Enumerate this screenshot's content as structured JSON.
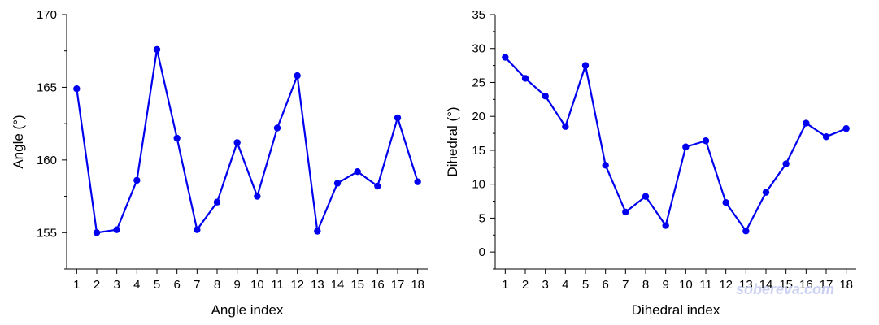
{
  "colors": {
    "series": "#0000ee",
    "axis": "#000000",
    "watermark": "#c7cdf2"
  },
  "watermark": "sobereva.com",
  "chart_data": [
    {
      "type": "line",
      "xlabel": "Angle index",
      "ylabel": "Angle (°)",
      "x": [
        1,
        2,
        3,
        4,
        5,
        6,
        7,
        8,
        9,
        10,
        11,
        12,
        13,
        14,
        15,
        16,
        17,
        18
      ],
      "series": [
        {
          "values": [
            164.9,
            155.0,
            155.2,
            158.6,
            167.6,
            161.5,
            155.2,
            157.1,
            161.2,
            157.5,
            162.2,
            165.8,
            155.1,
            158.4,
            159.2,
            158.2,
            162.9,
            158.5
          ]
        }
      ],
      "xlim": [
        0.5,
        18.5
      ],
      "ylim": [
        152.5,
        170
      ],
      "yticks": [
        155,
        160,
        165,
        170
      ],
      "grid": false
    },
    {
      "type": "line",
      "xlabel": "Dihedral index",
      "ylabel": "Dihedral (°)",
      "x": [
        1,
        2,
        3,
        4,
        5,
        6,
        7,
        8,
        9,
        10,
        11,
        12,
        13,
        14,
        15,
        16,
        17,
        18
      ],
      "series": [
        {
          "values": [
            28.7,
            25.6,
            23.0,
            18.5,
            27.5,
            12.8,
            5.9,
            8.2,
            3.9,
            15.5,
            16.4,
            7.3,
            3.1,
            8.8,
            13.0,
            19.0,
            17.0,
            18.2
          ]
        }
      ],
      "xlim": [
        0.5,
        18.5
      ],
      "ylim": [
        -2.5,
        35
      ],
      "yticks": [
        0,
        5,
        10,
        15,
        20,
        25,
        30,
        35
      ],
      "grid": false
    }
  ]
}
